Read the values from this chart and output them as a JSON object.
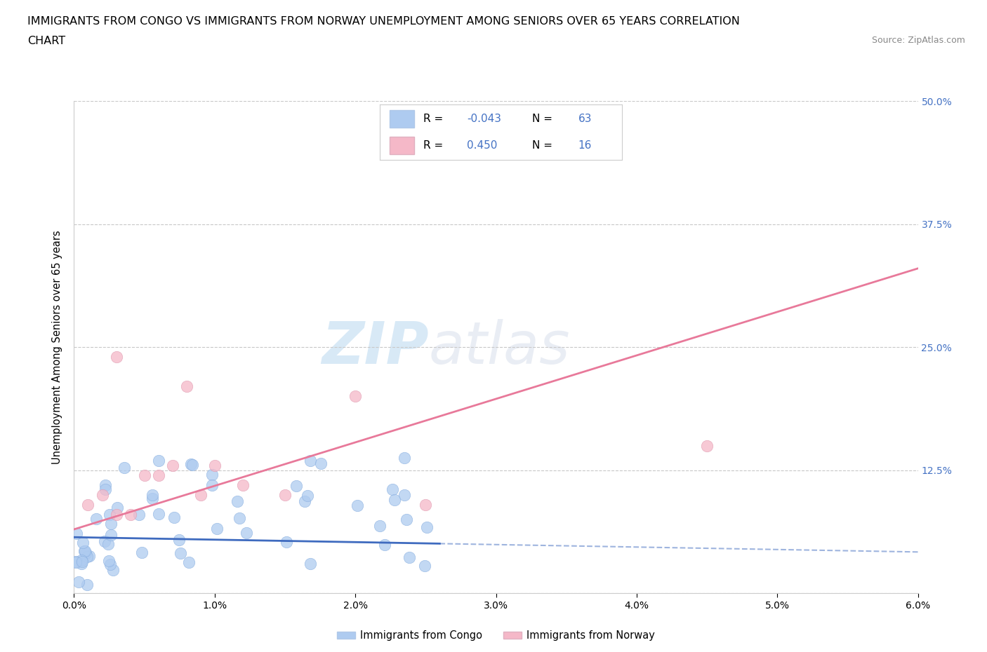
{
  "title_line1": "IMMIGRANTS FROM CONGO VS IMMIGRANTS FROM NORWAY UNEMPLOYMENT AMONG SENIORS OVER 65 YEARS CORRELATION",
  "title_line2": "CHART",
  "source_text": "Source: ZipAtlas.com",
  "ylabel": "Unemployment Among Seniors over 65 years",
  "xlim": [
    0.0,
    0.06
  ],
  "ylim": [
    0.0,
    0.5
  ],
  "xticklabels": [
    "0.0%",
    "1.0%",
    "2.0%",
    "3.0%",
    "4.0%",
    "5.0%",
    "6.0%"
  ],
  "ytick_right_labels": [
    "",
    "12.5%",
    "25.0%",
    "37.5%",
    "50.0%"
  ],
  "ytick_right_values": [
    0.0,
    0.125,
    0.25,
    0.375,
    0.5
  ],
  "congo_color": "#aecbf0",
  "norway_color": "#f5b8c8",
  "congo_line_color": "#3f6bbf",
  "norway_line_color": "#e8799a",
  "watermark_zip": "ZIP",
  "watermark_atlas": "atlas",
  "legend_label_congo": "Immigrants from Congo",
  "legend_label_norway": "Immigrants from Norway",
  "congo_R_text": "-0.043",
  "norway_R_text": "0.450",
  "congo_N": 63,
  "norway_N": 16,
  "background_color": "#ffffff",
  "grid_color": "#c8c8c8",
  "title_fontsize": 11.5,
  "tick_fontsize": 10,
  "right_tick_color": "#4472c4",
  "norway_line_x0": 0.0,
  "norway_line_y0": 0.065,
  "norway_line_x1": 0.06,
  "norway_line_y1": 0.33,
  "congo_line_x0": 0.0,
  "congo_line_y0": 0.057,
  "congo_line_x1": 0.06,
  "congo_line_y1": 0.042
}
